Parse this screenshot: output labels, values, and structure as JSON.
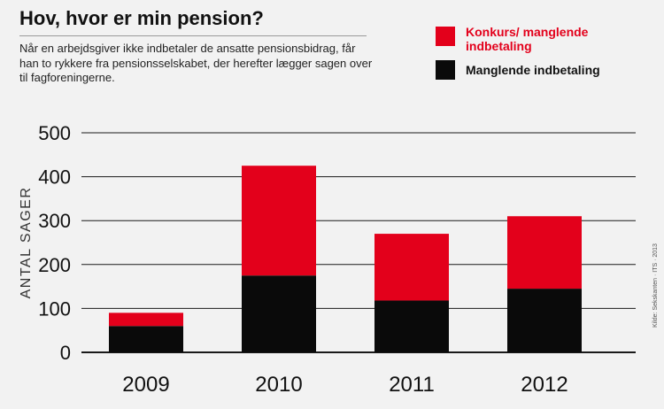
{
  "header": {
    "title": "Hov, hvor er min pension?",
    "description": "Når en arbejdsgiver ikke indbetaler de ansatte pensionsbidrag, får han to rykkere fra pensionsselskabet, der herefter lægger sagen over til fagforeningerne."
  },
  "source": "Kilde: Sekskanten · ITS · 2013",
  "colors": {
    "red": "#e3001b",
    "black": "#0a0a0a",
    "grid": "#1a1a1a",
    "background": "#f2f2f2"
  },
  "chart_data": {
    "type": "bar",
    "stacked": true,
    "categories": [
      "2009",
      "2010",
      "2011",
      "2012"
    ],
    "series": [
      {
        "name": "Manglende indbetaling",
        "color": "#0a0a0a",
        "values": [
          60,
          175,
          118,
          145
        ]
      },
      {
        "name": "Konkurs/ manglende indbetaling",
        "color": "#e3001b",
        "values": [
          30,
          250,
          152,
          165
        ]
      }
    ],
    "ylabel": "ANTAL SAGER",
    "ylim": [
      0,
      500
    ],
    "yticks": [
      0,
      100,
      200,
      300,
      400,
      500
    ],
    "grid": true,
    "legend_position": "top-right"
  }
}
